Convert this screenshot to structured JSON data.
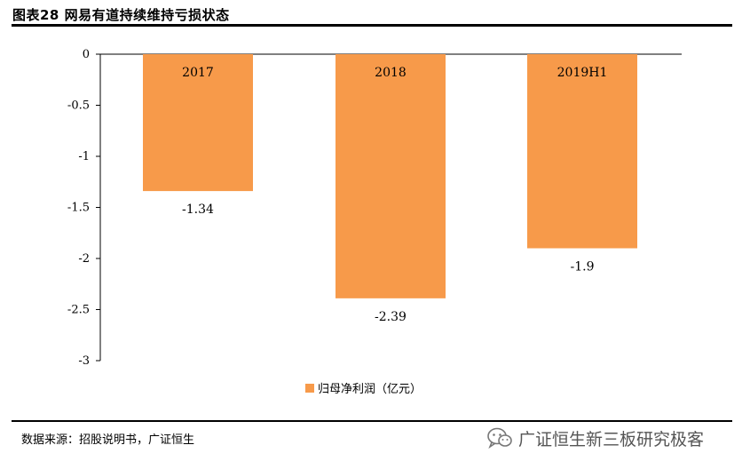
{
  "header": {
    "title": "图表28 网易有道持续维持亏损状态"
  },
  "footer": {
    "source": "数据来源：招股说明书，广证恒生",
    "watermark": "广证恒生新三板研究极客",
    "watermark_icon": "wechat-icon"
  },
  "colors": {
    "bar": "#F79A4A",
    "axis": "#000000",
    "rule": "#000000"
  },
  "chart_data": {
    "type": "bar",
    "categories": [
      "2017",
      "2018",
      "2019H1"
    ],
    "series": [
      {
        "name": "归母净利润（亿元）",
        "values": [
          -1.34,
          -2.39,
          -1.9
        ]
      }
    ],
    "value_labels": [
      "-1.34",
      "-2.39",
      "-1.9"
    ],
    "yticks": [
      "0",
      "-0.5",
      "-1",
      "-1.5",
      "-2",
      "-2.5",
      "-3"
    ],
    "ylim": [
      -3,
      0
    ],
    "xlabel": "",
    "ylabel": "",
    "category_labels_position": "inside-top",
    "legend_position": "bottom-center",
    "grid": false
  }
}
